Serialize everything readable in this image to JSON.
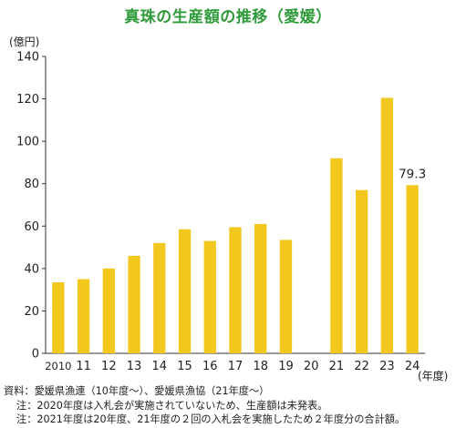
{
  "title": "真珠の生産額の推移（愛媛）",
  "colors": {
    "bar": "#F2C81E",
    "title": "#2F9A3A",
    "axis": "#333333",
    "text": "#222222"
  },
  "chart_data": {
    "type": "bar",
    "title": "真珠の生産額の推移（愛媛）",
    "ylabel": "(億円)",
    "xlabel": "(年度)",
    "ylim": [
      0,
      140
    ],
    "yticks": [
      0,
      20,
      40,
      60,
      80,
      100,
      120,
      140
    ],
    "grid": false,
    "categories": [
      "2010",
      "11",
      "12",
      "13",
      "14",
      "15",
      "16",
      "17",
      "18",
      "19",
      "20",
      "21",
      "22",
      "23",
      "24"
    ],
    "values": [
      33.5,
      35,
      40,
      46,
      52,
      58.5,
      53,
      59.5,
      61,
      53.5,
      null,
      92,
      77,
      120.5,
      79.3
    ],
    "data_labels": [
      {
        "category": "24",
        "text": "79.3"
      }
    ]
  },
  "notes": [
    "資料：愛媛県漁連（10年度～）、愛媛県漁協（21年度～）",
    "注：2020年度は入札会が実施されていないため、生産額は未発表。",
    "注：2021年度は20年度、21年度の２回の入札会を実施したため２年度分の合計額。"
  ]
}
